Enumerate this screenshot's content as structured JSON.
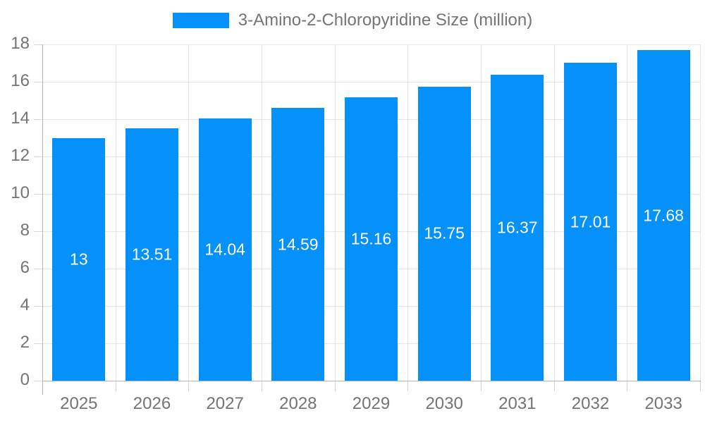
{
  "legend": {
    "label": "3-Amino-2-Chloropyridine Size (million)"
  },
  "chart_data": {
    "type": "bar",
    "title": "3-Amino-2-Chloropyridine Size (million)",
    "categories": [
      "2025",
      "2026",
      "2027",
      "2028",
      "2029",
      "2030",
      "2031",
      "2032",
      "2033"
    ],
    "values": [
      13,
      13.51,
      14.04,
      14.59,
      15.16,
      15.75,
      16.37,
      17.01,
      17.68
    ],
    "value_labels": [
      "13",
      "13.51",
      "14.04",
      "14.59",
      "15.16",
      "15.75",
      "16.37",
      "17.01",
      "17.68"
    ],
    "xlabel": "",
    "ylabel": "",
    "ylim": [
      0,
      18
    ],
    "ytick_step": 2,
    "ytick_labels": [
      "0",
      "2",
      "4",
      "6",
      "8",
      "10",
      "12",
      "14",
      "16",
      "18"
    ],
    "grid": true,
    "legend_position": "top",
    "bar_color": "#0591fb",
    "value_label_color": "#ffffff",
    "grid_color": "#e6e6e6",
    "axis_color": "#b3b3b3",
    "tick_color": "#d6d6d6",
    "text_color": "#757575"
  }
}
